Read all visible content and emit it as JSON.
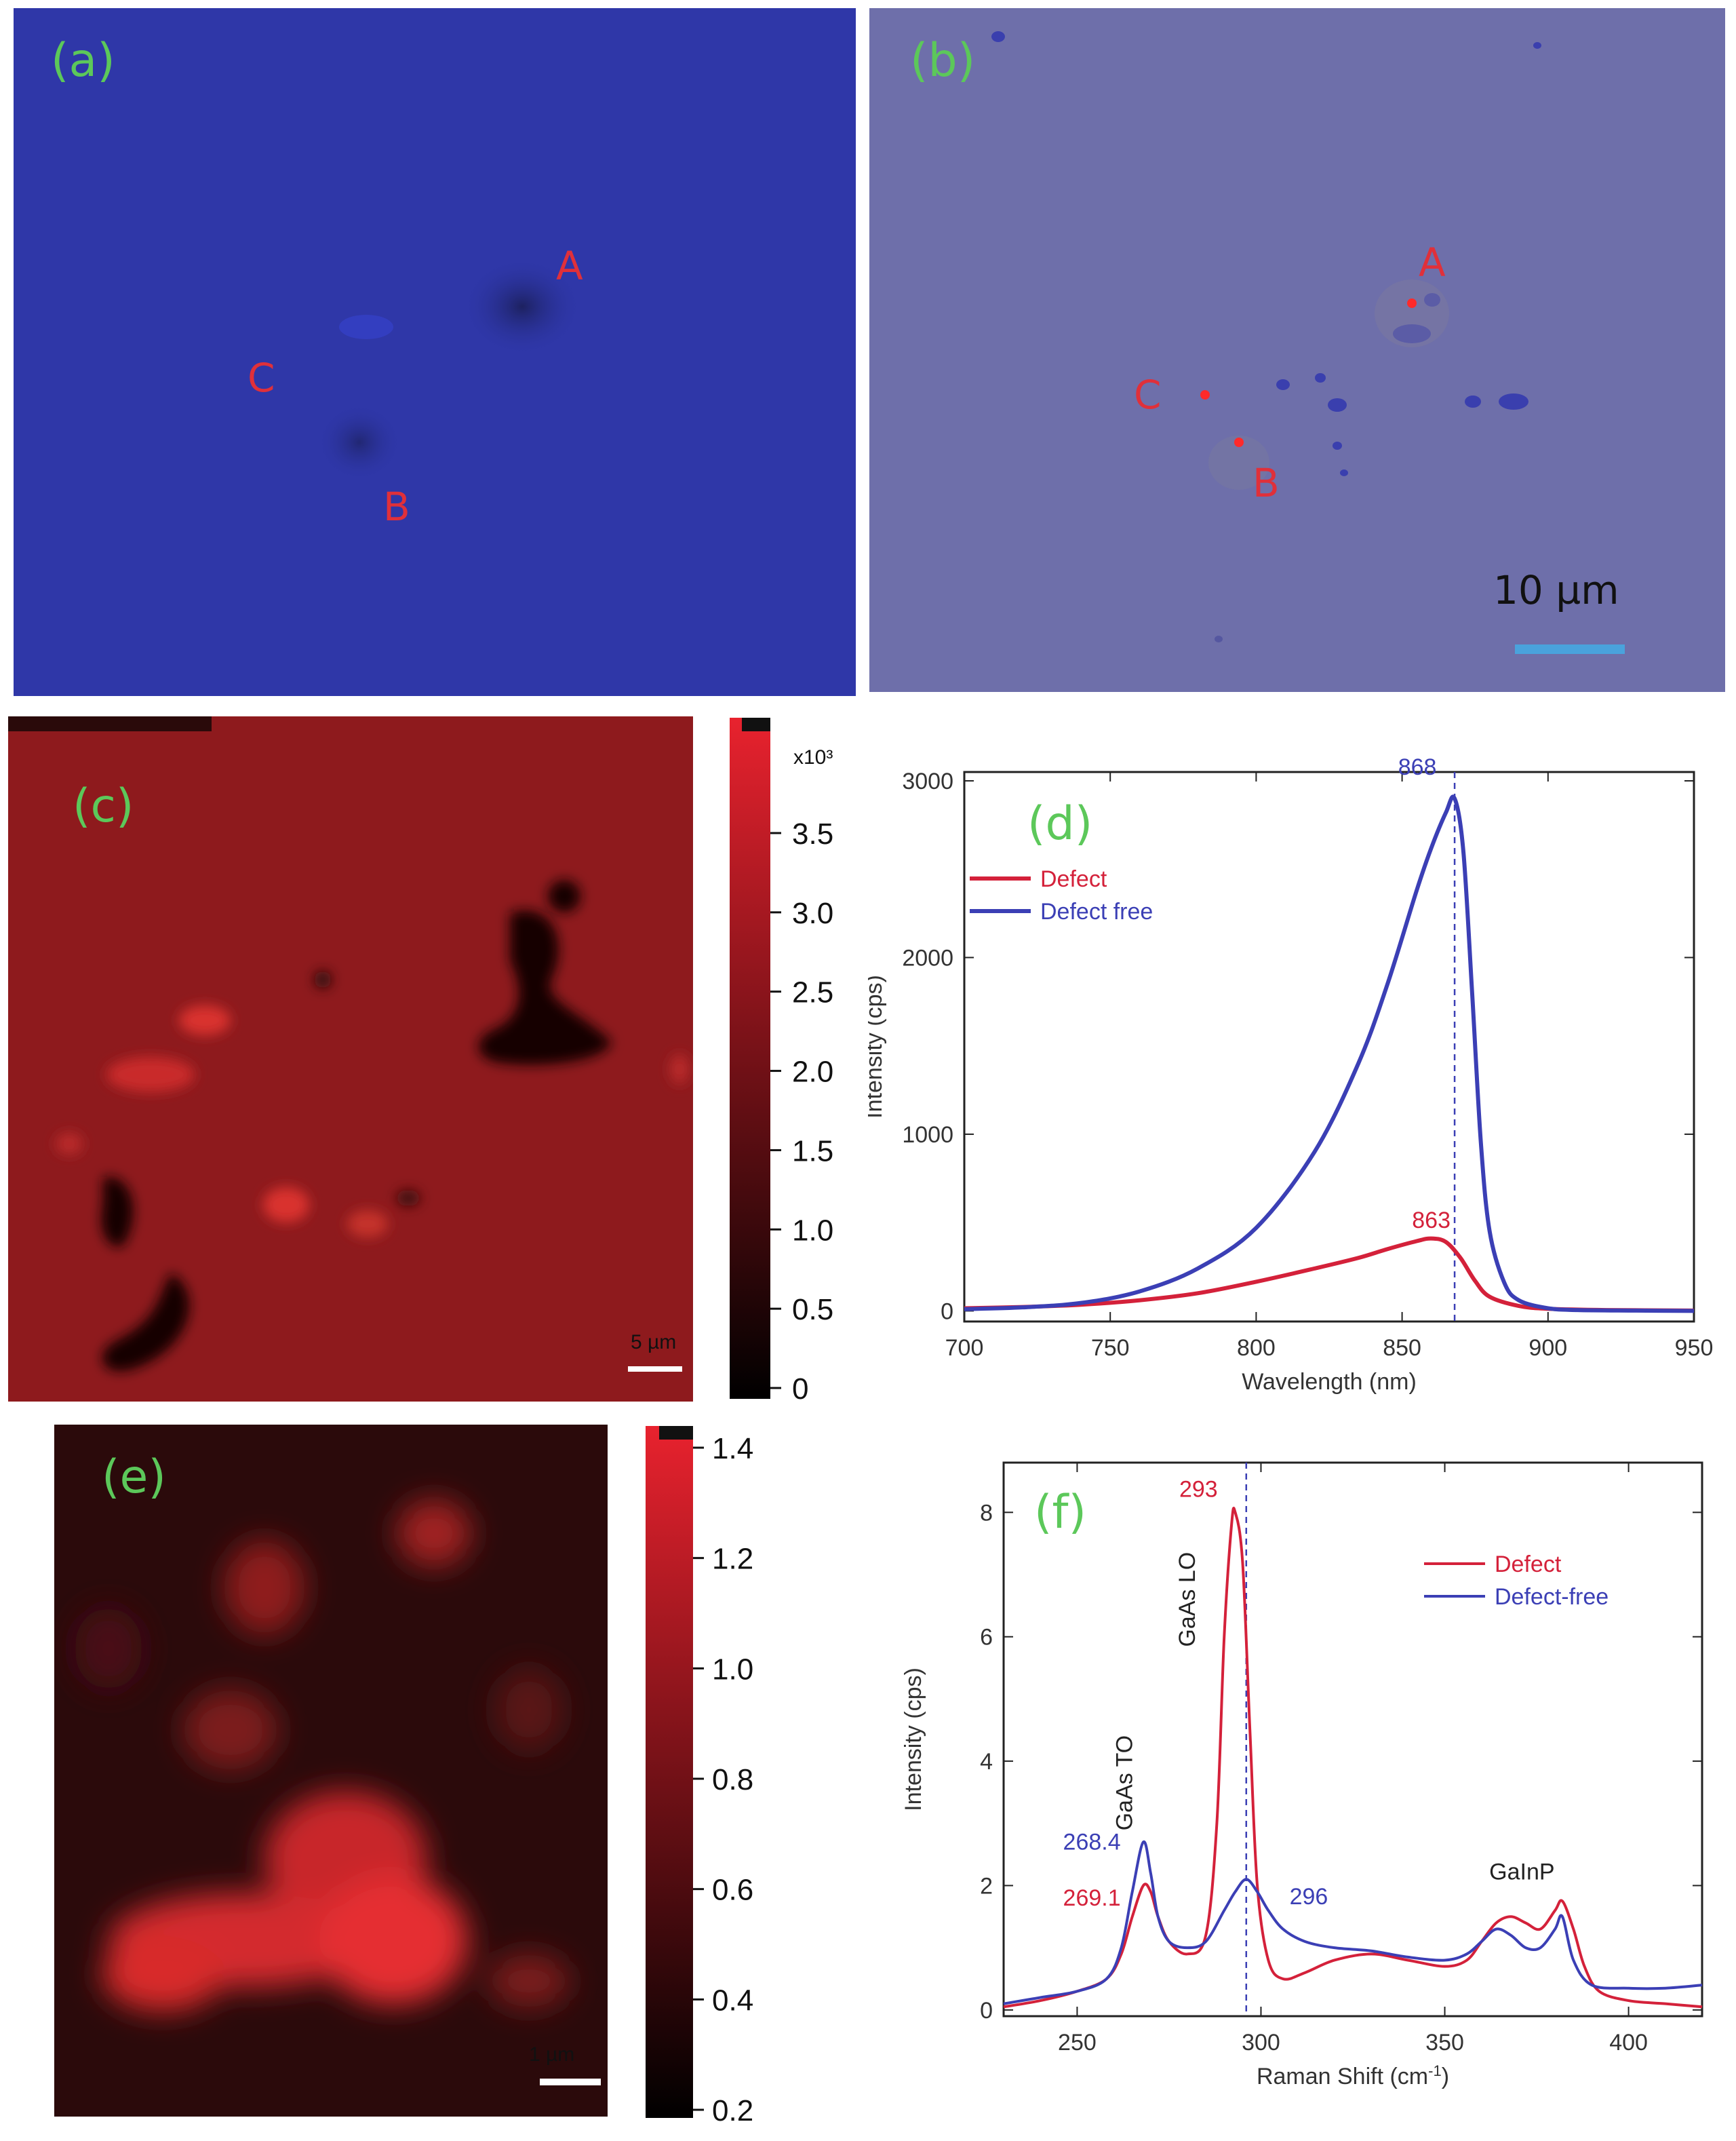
{
  "panel_a": {
    "label": "(a)",
    "markers": [
      {
        "text": "A"
      },
      {
        "text": "C"
      },
      {
        "text": "B"
      }
    ]
  },
  "panel_b": {
    "label": "(b)",
    "markers": [
      {
        "text": "A"
      },
      {
        "text": "C"
      },
      {
        "text": "B"
      }
    ],
    "scale_bar": "10 µm"
  },
  "panel_c": {
    "label": "(c)",
    "scale_bar": "5 µm",
    "colorbar": {
      "multiplier": "x10³",
      "ticks": [
        "3.5",
        "3.0",
        "2.5",
        "2.0",
        "1.5",
        "1.0",
        "0.5",
        "0"
      ],
      "colors": {
        "high": "#e8222e",
        "low": "#000000"
      }
    }
  },
  "panel_e": {
    "label": "(e)",
    "scale_bar": "1 µm",
    "colorbar": {
      "ticks": [
        "1.4",
        "1.2",
        "1.0",
        "0.8",
        "0.6",
        "0.4",
        "0.2"
      ],
      "colors": {
        "high": "#e8222e",
        "low": "#000000"
      }
    }
  },
  "chart_data": [
    {
      "panel": "(d)",
      "type": "line",
      "xlabel": "Wavelength (nm)",
      "ylabel": "Intensity (cps)",
      "xlim": [
        700,
        950
      ],
      "ylim": [
        -60,
        3050
      ],
      "xticks": [
        700,
        750,
        800,
        850,
        900,
        950
      ],
      "yticks": [
        0,
        1000,
        2000,
        3000
      ],
      "legend_position": "top-left",
      "series": [
        {
          "name": "Defect",
          "color": "#d4213a",
          "x": [
            700,
            720,
            740,
            760,
            780,
            800,
            820,
            835,
            845,
            855,
            860,
            865,
            870,
            875,
            880,
            890,
            900,
            920,
            950
          ],
          "y": [
            15,
            22,
            35,
            60,
            100,
            165,
            240,
            300,
            350,
            395,
            410,
            390,
            300,
            170,
            80,
            28,
            12,
            5,
            2
          ]
        },
        {
          "name": "Defect free",
          "color": "#3b3fb5",
          "x": [
            700,
            720,
            740,
            760,
            780,
            800,
            820,
            835,
            845,
            855,
            860,
            865,
            868,
            871,
            874,
            877,
            880,
            885,
            890,
            900,
            910,
            930,
            950
          ],
          "y": [
            10,
            20,
            45,
            110,
            240,
            470,
            900,
            1400,
            1850,
            2380,
            2620,
            2820,
            2900,
            2600,
            1800,
            950,
            450,
            160,
            60,
            15,
            5,
            2,
            0
          ]
        }
      ],
      "annotations": [
        {
          "text": "868",
          "x": 868,
          "color": "#3b3fb5"
        },
        {
          "text": "863",
          "x": 863,
          "color": "#d4213a"
        }
      ],
      "reference_line_x": 868
    },
    {
      "panel": "(f)",
      "type": "line",
      "xlabel": "Raman Shift (cm",
      "xlabel_superscript": "-1",
      "xlabel_close": ")",
      "ylabel": "Intensity (cps)",
      "xlim": [
        230,
        420
      ],
      "ylim": [
        -0.1,
        8.8
      ],
      "xticks": [
        250,
        300,
        350,
        400
      ],
      "yticks": [
        0,
        2,
        4,
        6,
        8
      ],
      "legend_position": "top-right",
      "series": [
        {
          "name": "Defect",
          "color": "#d4213a",
          "x": [
            230,
            240,
            250,
            258,
            262,
            265,
            268,
            270,
            272,
            275,
            280,
            285,
            288,
            290,
            292,
            293,
            295,
            297,
            299,
            302,
            306,
            312,
            320,
            330,
            340,
            350,
            356,
            360,
            364,
            368,
            372,
            376,
            380,
            382,
            385,
            388,
            392,
            400,
            410,
            420
          ],
          "y": [
            0.05,
            0.15,
            0.3,
            0.5,
            0.9,
            1.5,
            2.0,
            1.9,
            1.5,
            1.1,
            0.9,
            1.2,
            3.0,
            6.0,
            7.8,
            8.0,
            7.2,
            4.5,
            2.0,
            0.8,
            0.5,
            0.6,
            0.8,
            0.9,
            0.8,
            0.7,
            0.8,
            1.1,
            1.4,
            1.5,
            1.4,
            1.3,
            1.6,
            1.75,
            1.3,
            0.7,
            0.3,
            0.15,
            0.1,
            0.05
          ]
        },
        {
          "name": "Defect-free",
          "color": "#3b3fb5",
          "x": [
            230,
            240,
            250,
            258,
            262,
            265,
            268,
            270,
            272,
            275,
            280,
            285,
            290,
            293,
            296,
            299,
            302,
            306,
            312,
            320,
            330,
            340,
            350,
            356,
            360,
            364,
            368,
            372,
            376,
            380,
            382,
            385,
            390,
            400,
            410,
            420
          ],
          "y": [
            0.1,
            0.2,
            0.3,
            0.5,
            1.0,
            1.9,
            2.7,
            2.2,
            1.5,
            1.1,
            1.0,
            1.1,
            1.6,
            1.9,
            2.1,
            1.9,
            1.6,
            1.3,
            1.1,
            1.0,
            0.95,
            0.85,
            0.8,
            0.9,
            1.1,
            1.3,
            1.2,
            1.0,
            1.0,
            1.3,
            1.5,
            0.8,
            0.4,
            0.35,
            0.35,
            0.4
          ]
        }
      ],
      "annotations": [
        {
          "text": "293",
          "color": "#d4213a"
        },
        {
          "text": "268.4",
          "color": "#3b3fb5"
        },
        {
          "text": "269.1",
          "color": "#d4213a"
        },
        {
          "text": "296",
          "color": "#3b3fb5"
        },
        {
          "text": "GaAs LO",
          "color": "#222222"
        },
        {
          "text": "GaAs TO",
          "color": "#222222"
        },
        {
          "text": "GaInP",
          "color": "#222222"
        }
      ],
      "reference_line_x": 296
    }
  ]
}
